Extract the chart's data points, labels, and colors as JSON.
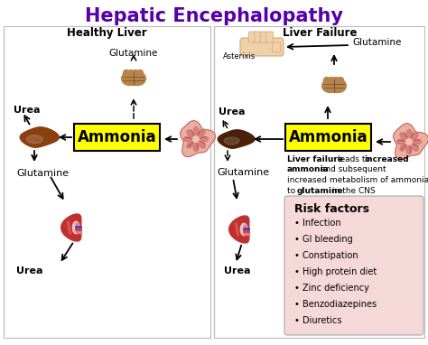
{
  "title": "Hepatic Encephalopathy",
  "title_color": "#5500aa",
  "title_fontsize": 15,
  "subtitle_left": "Healthy Liver",
  "subtitle_right": "Liver Failure",
  "subtitle_fontsize": 8.5,
  "bg_color": "#ffffff",
  "panel_border": "#cccccc",
  "ammonia_box_color": "#ffff00",
  "ammonia_text": "Ammonia",
  "ammonia_fontsize": 12,
  "risk_box_color": "#f5d8d8",
  "risk_title": "Risk factors",
  "risk_items": [
    "Infection",
    "GI bleeding",
    "Constipation",
    "High protein diet",
    "Zinc deficiency",
    "Benzodiazepines",
    "Diuretics"
  ],
  "liver_failure_line1": "Liver failure leads to increased",
  "liver_failure_line2": "ammonia and subsequent",
  "liver_failure_line3": "increased metabolism of ammonia",
  "liver_failure_line4": "to glutamine in the CNS",
  "asterixis": "Asterixis",
  "left_urea_top": "Urea",
  "left_glutamine_top": "Glutamine",
  "left_glutamine_bot": "Glutamine",
  "left_urea_bot": "Urea",
  "right_urea_top": "Urea",
  "right_glutamine_top": "Glutamine",
  "right_glutamine_bot": "Glutamine",
  "right_urea_bot": "Urea"
}
